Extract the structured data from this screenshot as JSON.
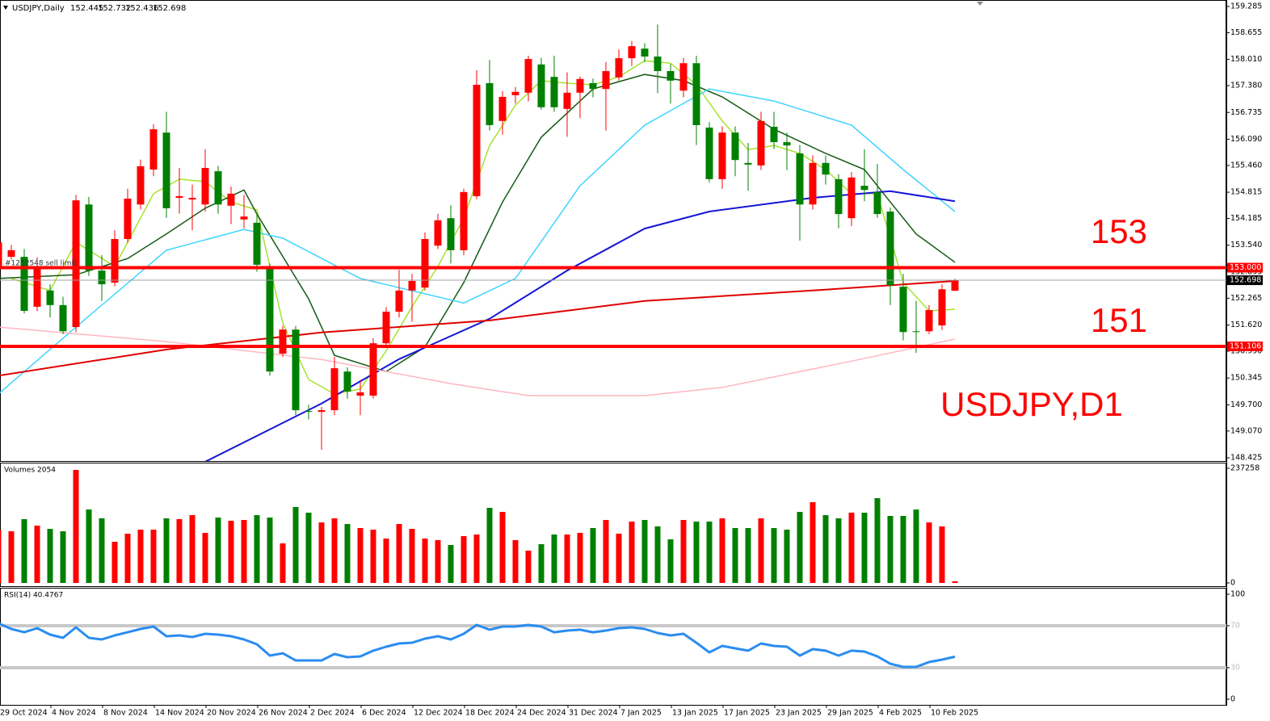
{
  "chart_data": [
    {
      "type": "candlestick",
      "title": "USDJPY,Daily",
      "categories": [
        "29 Oct 2024",
        null,
        null,
        null,
        "4 Nov 2024",
        null,
        null,
        null,
        "8 Nov 2024",
        null,
        null,
        null,
        "14 Nov 2024",
        null,
        null,
        null,
        "20 Nov 2024",
        null,
        null,
        null,
        "26 Nov 2024",
        null,
        null,
        null,
        "2 Dec 2024",
        null,
        null,
        null,
        "6 Dec 2024",
        null,
        null,
        null,
        "12 Dec 2024",
        null,
        null,
        null,
        "18 Dec 2024",
        null,
        null,
        null,
        "24 Dec 2024",
        null,
        null,
        null,
        "31 Dec 2024",
        null,
        null,
        null,
        "7 Jan 2025",
        null,
        null,
        null,
        "13 Jan 2025",
        null,
        null,
        null,
        "17 Jan 2025",
        null,
        null,
        null,
        "23 Jan 2025",
        null,
        null,
        null,
        "29 Jan 2025",
        null,
        null,
        null,
        "4 Feb 2025",
        null,
        null,
        null,
        "10 Feb 2025",
        null,
        null
      ],
      "open": [
        153.03,
        153.26,
        153.26,
        152.06,
        152.45,
        152.1,
        151.57,
        154.52,
        152.93,
        152.64,
        153.69,
        154.52,
        155.36,
        156.25,
        154.68,
        154.64,
        154.52,
        155.32,
        154.49,
        154.16,
        154.08,
        153.03,
        150.93,
        151.51,
        149.55,
        149.53,
        149.57,
        150.5,
        149.92,
        149.92,
        151.18,
        151.94,
        152.45,
        152.52,
        153.53,
        154.19,
        153.42,
        154.72,
        157.44,
        156.53,
        157.15,
        157.21,
        157.89,
        157.59,
        156.82,
        157.21,
        157.44,
        157.3,
        157.58,
        158.04,
        158.27,
        158.08,
        157.73,
        157.26,
        157.92,
        156.37,
        155.13,
        156.25,
        155.52,
        155.46,
        156.39,
        156.02,
        155.75,
        154.52,
        155.52,
        155.13,
        154.19,
        154.97,
        154.82,
        154.35,
        152.54,
        151.47,
        151.47,
        151.61,
        152.445
      ],
      "high": [
        153.75,
        153.55,
        153.45,
        153.25,
        152.6,
        152.3,
        154.75,
        154.7,
        153.3,
        153.9,
        154.9,
        155.6,
        156.45,
        156.75,
        155.4,
        155.0,
        155.85,
        155.45,
        154.95,
        154.75,
        154.3,
        153.1,
        151.6,
        151.6,
        149.7,
        149.65,
        150.85,
        150.6,
        150.3,
        151.3,
        152.05,
        152.95,
        152.85,
        153.85,
        154.3,
        154.5,
        154.9,
        157.75,
        158.0,
        157.25,
        157.35,
        158.1,
        158.05,
        158.1,
        157.7,
        157.6,
        157.55,
        157.95,
        158.25,
        158.45,
        158.4,
        158.85,
        157.9,
        158.05,
        158.1,
        156.5,
        156.4,
        156.4,
        156.0,
        156.75,
        156.75,
        156.25,
        155.95,
        155.7,
        155.7,
        155.25,
        155.3,
        155.85,
        155.5,
        154.45,
        152.85,
        152.2,
        152.1,
        152.6,
        152.732
      ],
      "low": [
        152.95,
        153.2,
        151.9,
        151.95,
        151.8,
        151.4,
        151.45,
        152.8,
        152.2,
        152.55,
        153.6,
        154.4,
        155.2,
        154.2,
        154.3,
        153.9,
        154.35,
        154.3,
        154.05,
        153.95,
        152.9,
        150.4,
        150.85,
        149.45,
        149.35,
        148.62,
        149.45,
        149.85,
        149.45,
        149.85,
        151.1,
        151.8,
        151.7,
        152.45,
        153.45,
        153.1,
        153.3,
        154.65,
        156.3,
        156.2,
        156.95,
        157.0,
        156.8,
        156.75,
        156.15,
        156.6,
        157.1,
        156.3,
        157.5,
        157.85,
        157.95,
        157.2,
        156.95,
        157.1,
        155.95,
        155.05,
        154.9,
        155.2,
        154.85,
        155.35,
        155.85,
        155.35,
        153.65,
        154.4,
        155.0,
        153.95,
        154.0,
        154.6,
        154.2,
        152.1,
        151.25,
        150.95,
        151.4,
        151.5,
        152.436
      ],
      "close": [
        153.61,
        153.42,
        151.96,
        153.03,
        152.1,
        151.47,
        154.62,
        152.93,
        152.6,
        153.69,
        154.66,
        155.44,
        156.33,
        154.43,
        154.72,
        154.68,
        155.4,
        154.52,
        154.78,
        154.23,
        153.07,
        150.5,
        151.51,
        149.57,
        149.53,
        149.57,
        150.58,
        150.02,
        150.0,
        151.18,
        151.94,
        152.45,
        152.68,
        153.69,
        154.14,
        153.42,
        154.82,
        157.4,
        156.43,
        157.11,
        157.23,
        158.02,
        156.86,
        156.86,
        157.21,
        157.54,
        157.3,
        157.73,
        158.04,
        158.33,
        158.08,
        157.73,
        157.5,
        157.92,
        156.43,
        155.13,
        156.25,
        155.59,
        155.48,
        156.53,
        156.02,
        155.94,
        154.52,
        155.52,
        155.24,
        154.29,
        155.17,
        154.87,
        154.29,
        152.58,
        151.45,
        151.45,
        151.98,
        152.48,
        152.698
      ],
      "up_color": "#ff0000",
      "down_color": "#008000",
      "lines": [
        {
          "color": "#a6e22e",
          "x": [
            1,
            4,
            6,
            9,
            12,
            14,
            16,
            18,
            20,
            22,
            24,
            26,
            28,
            30,
            32,
            34,
            36,
            38,
            40,
            42,
            44,
            46,
            48,
            50,
            52,
            54,
            56,
            58,
            60,
            62,
            64,
            66,
            68,
            70,
            72,
            74
          ],
          "values": [
            152.74,
            152.45,
            153.61,
            153.03,
            154.78,
            155.13,
            155.07,
            154.58,
            154.39,
            151.67,
            150.31,
            149.96,
            150.08,
            151.0,
            152.06,
            153.03,
            154.19,
            155.94,
            156.91,
            157.5,
            157.44,
            157.4,
            157.59,
            157.98,
            157.92,
            157.4,
            156.53,
            155.84,
            155.94,
            155.75,
            155.36,
            154.78,
            154.78,
            152.64,
            151.96,
            152.0
          ]
        },
        {
          "color": "#145a14",
          "x": [
            0,
            6,
            10,
            13,
            16,
            19,
            20,
            24,
            26,
            30,
            33,
            36,
            39,
            42,
            46,
            50,
            53,
            56,
            60,
            64,
            67,
            69,
            71,
            74
          ],
          "values": [
            152.74,
            152.83,
            153.22,
            153.81,
            154.43,
            154.87,
            154.29,
            152.25,
            150.89,
            150.5,
            151.09,
            152.64,
            154.58,
            156.14,
            157.3,
            157.65,
            157.5,
            157.11,
            156.33,
            155.75,
            155.36,
            154.58,
            153.81,
            153.13
          ]
        },
        {
          "color": "#3fd4ff",
          "x": [
            0,
            6,
            13,
            19,
            22,
            28,
            36,
            40,
            45,
            50,
            55,
            60,
            66,
            70,
            74
          ],
          "values": [
            149.96,
            151.57,
            153.42,
            153.92,
            153.71,
            152.74,
            152.15,
            152.74,
            154.97,
            156.43,
            157.3,
            157.01,
            156.43,
            155.36,
            154.35
          ]
        },
        {
          "color": "#1515d8",
          "x": [
            16,
            25,
            31,
            38,
            44,
            50,
            55,
            63,
            69,
            74
          ],
          "values": [
            148.33,
            149.73,
            150.8,
            151.77,
            152.93,
            153.94,
            154.35,
            154.68,
            154.84,
            154.6
          ]
        },
        {
          "color": "#e00000",
          "x": [
            0,
            13,
            25,
            38,
            50,
            63,
            74
          ],
          "values": [
            150.4,
            151.03,
            151.44,
            151.73,
            152.2,
            152.45,
            152.68
          ]
        },
        {
          "color": "#ffb6c1",
          "x": [
            0,
            13,
            25,
            35,
            41,
            50,
            56,
            66,
            74
          ],
          "values": [
            151.57,
            151.22,
            150.79,
            150.21,
            149.92,
            149.92,
            150.12,
            150.75,
            151.28
          ]
        }
      ],
      "levels": [
        {
          "value": 153,
          "label": "153.000",
          "color": "#ff0000"
        },
        {
          "value": 151.106,
          "label": "151.106",
          "color": "#ff0000"
        }
      ],
      "last_price": {
        "value": 152.698,
        "label": "152.698"
      },
      "order_label": "#1252548 sell limit",
      "annotations": [
        "153",
        "151",
        "USDJPY,D1"
      ],
      "ylim": [
        148.425,
        159.285
      ],
      "yticks": [
        159.285,
        158.655,
        {
          "value": 158.01,
          "label": "158.010"
        },
        {
          "value": 157.38,
          "label": "157.380"
        },
        156.735,
        {
          "value": 156.09,
          "label": "156.090"
        },
        {
          "value": 155.46,
          "label": "155.460"
        },
        154.815,
        154.185,
        {
          "value": 153.54,
          "label": "153.540"
        },
        152.895,
        152.265,
        {
          "value": 151.62,
          "label": "151.620"
        },
        {
          "value": 150.99,
          "label": "150.990"
        },
        150.345,
        {
          "value": 149.7,
          "label": "149.700"
        },
        {
          "value": 149.07,
          "label": "149.070"
        },
        148.425
      ]
    },
    {
      "type": "bar",
      "title": "Volumes 2054",
      "values": [
        110000,
        106900,
        132000,
        118600,
        111900,
        106900,
        233900,
        152000,
        133700,
        85200,
        101900,
        110300,
        110300,
        133700,
        132000,
        140300,
        103600,
        135300,
        128700,
        130300,
        140300,
        135300,
        81900,
        157100,
        145400,
        125300,
        133700,
        122000,
        113600,
        110300,
        91900,
        122000,
        111900,
        91900,
        88600,
        78500,
        96900,
        100200,
        155400,
        147000,
        88600,
        66800,
        80200,
        100200,
        100200,
        103600,
        113600,
        130300,
        101900,
        127000,
        130300,
        117000,
        90200,
        130300,
        127000,
        127000,
        133700,
        113600,
        113600,
        133700,
        113600,
        110300,
        147000,
        167100,
        140300,
        133700,
        145400,
        145400,
        175400,
        138700,
        138700,
        152000,
        125300,
        117000,
        3300
      ],
      "ylim": [
        0,
        237258
      ],
      "yticks": [
        0,
        237258
      ]
    },
    {
      "type": "line",
      "title": "RSI(14) 40.4767",
      "color": "#2b8cf0",
      "values": [
        72.3,
        66.9,
        63.8,
        67.7,
        61.5,
        58.5,
        68.5,
        58.5,
        56.9,
        60.8,
        63.8,
        66.9,
        69.2,
        60.0,
        60.8,
        59.2,
        62.3,
        61.5,
        60.0,
        56.9,
        52.3,
        41.5,
        43.8,
        36.9,
        36.9,
        36.9,
        43.1,
        40.0,
        40.8,
        46.2,
        50.0,
        53.1,
        53.8,
        57.7,
        60.0,
        56.9,
        62.3,
        70.8,
        66.2,
        69.2,
        69.2,
        70.8,
        69.2,
        63.8,
        65.4,
        66.2,
        63.8,
        65.4,
        67.7,
        68.5,
        66.9,
        63.1,
        60.8,
        62.3,
        53.8,
        44.6,
        50.8,
        48.5,
        46.2,
        53.1,
        50.8,
        50.0,
        41.5,
        47.7,
        46.2,
        41.5,
        46.2,
        45.4,
        40.8,
        33.8,
        30.8,
        30.8,
        35.4,
        37.7,
        40.4767
      ],
      "level_lines": [
        30,
        70
      ],
      "ylim": [
        0,
        100
      ],
      "yticks": [
        0,
        30,
        70,
        100
      ]
    }
  ]
}
